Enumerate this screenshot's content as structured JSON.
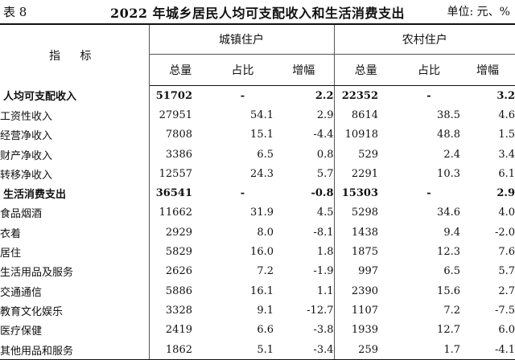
{
  "header": {
    "table_no": "表 8",
    "title": "2022 年城乡居民人均可支配收入和生活消费支出",
    "unit": "单位: 元、%"
  },
  "columns": {
    "indicator": "指 标",
    "urban": "城镇住户",
    "rural": "农村住户",
    "total": "总量",
    "share": "占比",
    "growth": "增幅"
  },
  "rows": [
    {
      "label": "人均可支配收入",
      "main": true,
      "u": [
        "51702",
        "-",
        "2.2"
      ],
      "r": [
        "22352",
        "-",
        "3.2"
      ]
    },
    {
      "label": "工资性收入",
      "main": false,
      "u": [
        "27951",
        "54.1",
        "2.9"
      ],
      "r": [
        "8614",
        "38.5",
        "4.6"
      ]
    },
    {
      "label": "经营净收入",
      "main": false,
      "u": [
        "7808",
        "15.1",
        "-4.4"
      ],
      "r": [
        "10918",
        "48.8",
        "1.5"
      ]
    },
    {
      "label": "财产净收入",
      "main": false,
      "u": [
        "3386",
        "6.5",
        "0.8"
      ],
      "r": [
        "529",
        "2.4",
        "3.4"
      ]
    },
    {
      "label": "转移净收入",
      "main": false,
      "u": [
        "12557",
        "24.3",
        "5.7"
      ],
      "r": [
        "2291",
        "10.3",
        "6.1"
      ]
    },
    {
      "label": "生活消费支出",
      "main": true,
      "u": [
        "36541",
        "-",
        "-0.8"
      ],
      "r": [
        "15303",
        "-",
        "2.9"
      ]
    },
    {
      "label": "食品烟酒",
      "main": false,
      "u": [
        "11662",
        "31.9",
        "4.5"
      ],
      "r": [
        "5298",
        "34.6",
        "4.0"
      ]
    },
    {
      "label": "衣着",
      "main": false,
      "u": [
        "2929",
        "8.0",
        "-8.1"
      ],
      "r": [
        "1438",
        "9.4",
        "-2.0"
      ]
    },
    {
      "label": "居住",
      "main": false,
      "u": [
        "5829",
        "16.0",
        "1.8"
      ],
      "r": [
        "1875",
        "12.3",
        "7.6"
      ]
    },
    {
      "label": "生活用品及服务",
      "main": false,
      "u": [
        "2626",
        "7.2",
        "-1.9"
      ],
      "r": [
        "997",
        "6.5",
        "5.7"
      ]
    },
    {
      "label": "交通通信",
      "main": false,
      "u": [
        "5886",
        "16.1",
        "1.1"
      ],
      "r": [
        "2390",
        "15.6",
        "2.7"
      ]
    },
    {
      "label": "教育文化娱乐",
      "main": false,
      "u": [
        "3328",
        "9.1",
        "-12.7"
      ],
      "r": [
        "1107",
        "7.2",
        "-7.5"
      ]
    },
    {
      "label": "医疗保健",
      "main": false,
      "u": [
        "2419",
        "6.6",
        "-3.8"
      ],
      "r": [
        "1939",
        "12.7",
        "6.0"
      ]
    },
    {
      "label": "其他用品和服务",
      "main": false,
      "u": [
        "1862",
        "5.1",
        "-3.4"
      ],
      "r": [
        "259",
        "1.7",
        "-4.1"
      ]
    }
  ]
}
